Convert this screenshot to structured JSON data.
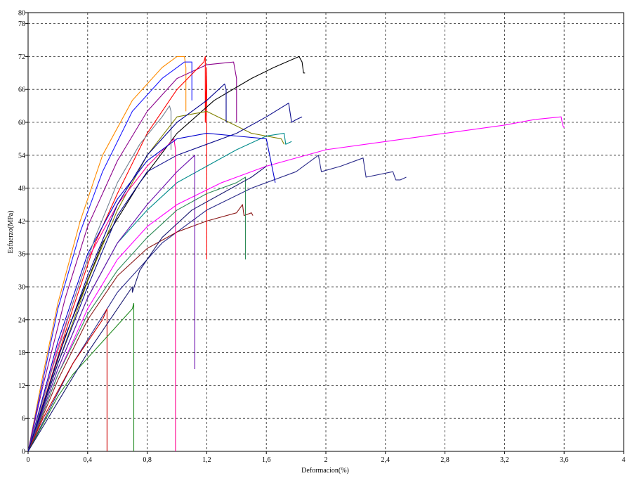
{
  "chart_data": {
    "type": "line",
    "title": "",
    "xlabel": "Deformacion(%)",
    "ylabel": "Esfuerzo(MPa)",
    "xlim": [
      0,
      4
    ],
    "ylim": [
      0,
      80
    ],
    "grid": true,
    "x_ticks": [
      0,
      0.4,
      0.8,
      1.2,
      1.6,
      2,
      2.4,
      2.8,
      3.2,
      3.6,
      4
    ],
    "x_tick_labels": [
      "0",
      "0,4",
      "0,8",
      "1,2",
      "1,6",
      "2",
      "2,4",
      "2,8",
      "3,2",
      "3,6",
      "4"
    ],
    "y_ticks": [
      0,
      6,
      12,
      18,
      24,
      30,
      36,
      42,
      48,
      54,
      60,
      66,
      72,
      78,
      80
    ],
    "y_tick_labels": [
      "0",
      "6",
      "12",
      "18",
      "24",
      "30",
      "36",
      "42",
      "48",
      "54",
      "60",
      "66",
      "72",
      "78",
      "80"
    ],
    "series": [
      {
        "color": "#ff8c00",
        "x": [
          0,
          0.1,
          0.2,
          0.35,
          0.5,
          0.7,
          0.9,
          1.0,
          1.05,
          1.06,
          1.06
        ],
        "y": [
          0,
          14,
          27,
          42,
          54,
          64,
          70,
          72,
          72,
          70,
          62
        ]
      },
      {
        "color": "#1a1aff",
        "x": [
          0,
          0.1,
          0.2,
          0.35,
          0.5,
          0.7,
          0.9,
          1.05,
          1.1,
          1.1
        ],
        "y": [
          0,
          13,
          26,
          40,
          51,
          62,
          68,
          71,
          71,
          64
        ]
      },
      {
        "color": "#8b008b",
        "x": [
          0,
          0.1,
          0.25,
          0.4,
          0.6,
          0.8,
          1.0,
          1.2,
          1.38,
          1.4,
          1.4
        ],
        "y": [
          0,
          12,
          28,
          41,
          53,
          62,
          68,
          70.5,
          71,
          68,
          60
        ]
      },
      {
        "color": "#ff0000",
        "x": [
          0,
          0.15,
          0.3,
          0.45,
          0.6,
          0.8,
          1.0,
          1.18,
          1.19,
          1.19,
          1.2,
          1.2
        ],
        "y": [
          0,
          13,
          26,
          38,
          47,
          58,
          66,
          71,
          72,
          60,
          70,
          35
        ]
      },
      {
        "color": "#000000",
        "x": [
          0,
          0.25,
          0.5,
          0.75,
          1.0,
          1.25,
          1.5,
          1.65,
          1.82,
          1.84,
          1.85,
          1.86
        ],
        "y": [
          0,
          21,
          38,
          49,
          58,
          64,
          68,
          70,
          72,
          71,
          69,
          69
        ]
      },
      {
        "color": "#808000",
        "x": [
          0,
          0.2,
          0.4,
          0.6,
          0.8,
          1.0,
          1.2,
          1.35,
          1.5,
          1.6,
          1.7,
          1.72
        ],
        "y": [
          0,
          16,
          31,
          44,
          54,
          61,
          62,
          60,
          58,
          57.5,
          57,
          56
        ]
      },
      {
        "color": "#0b0b8b",
        "x": [
          0,
          0.2,
          0.4,
          0.6,
          0.8,
          1.0,
          1.2,
          1.4,
          1.6,
          1.75,
          1.77,
          1.8,
          1.84
        ],
        "y": [
          0,
          16,
          30,
          43,
          51,
          54,
          56,
          58,
          61,
          63.5,
          60,
          60.5,
          61
        ]
      },
      {
        "color": "#008b8b",
        "x": [
          0,
          0.2,
          0.4,
          0.6,
          0.8,
          1.0,
          1.2,
          1.4,
          1.6,
          1.72,
          1.73,
          1.77
        ],
        "y": [
          0,
          15,
          28,
          38,
          44,
          49,
          52,
          55,
          57.5,
          58,
          56,
          56.5
        ]
      },
      {
        "color": "#ff00ff",
        "x": [
          0,
          0.2,
          0.4,
          0.6,
          0.8,
          1.0,
          1.3,
          1.6,
          2.0,
          2.4,
          2.8,
          3.2,
          3.4,
          3.58,
          3.59,
          3.6
        ],
        "y": [
          0,
          14,
          26,
          35,
          41,
          45,
          49,
          52,
          55,
          56.5,
          58,
          59.5,
          60.5,
          61,
          59.5,
          59
        ]
      },
      {
        "color": "#2a2a8a",
        "x": [
          0,
          0.3,
          0.6,
          0.9,
          1.2,
          1.5,
          1.8,
          1.95,
          1.97,
          2.1,
          2.25,
          2.27,
          2.45,
          2.47,
          2.5,
          2.54
        ],
        "y": [
          0,
          16,
          29,
          38,
          44,
          48,
          51,
          54,
          51,
          52,
          53.5,
          50,
          51,
          49.5,
          49.5,
          50
        ]
      },
      {
        "color": "#8b1a1a",
        "x": [
          0,
          0.2,
          0.4,
          0.6,
          0.8,
          1.0,
          1.2,
          1.4,
          1.44,
          1.45,
          1.5,
          1.51
        ],
        "y": [
          0,
          13,
          24,
          32,
          37,
          40,
          42,
          43.5,
          45,
          43,
          43.5,
          43
        ]
      },
      {
        "color": "#ff0090",
        "x": [
          0,
          0.2,
          0.4,
          0.6,
          0.8,
          0.98,
          0.99,
          0.99
        ],
        "y": [
          0,
          19,
          35,
          45,
          52,
          57,
          55,
          0
        ]
      },
      {
        "color": "#2e8b57",
        "x": [
          0,
          0.2,
          0.4,
          0.6,
          0.8,
          1.0,
          1.2,
          1.4,
          1.46,
          1.46
        ],
        "y": [
          0,
          14,
          25,
          33,
          39,
          44,
          47,
          49,
          50,
          35
        ]
      },
      {
        "color": "#6a0dad",
        "x": [
          0,
          0.2,
          0.4,
          0.6,
          0.8,
          1.0,
          1.12,
          1.12
        ],
        "y": [
          0,
          15,
          28,
          38,
          45,
          51,
          54,
          15
        ]
      },
      {
        "color": "#cc0000",
        "x": [
          0,
          0.1,
          0.2,
          0.3,
          0.4,
          0.5,
          0.53,
          0.53
        ],
        "y": [
          0,
          6,
          11,
          16,
          20,
          24,
          26,
          0
        ]
      },
      {
        "color": "#228b22",
        "x": [
          0,
          0.1,
          0.2,
          0.3,
          0.4,
          0.5,
          0.6,
          0.7,
          0.71,
          0.71
        ],
        "y": [
          0,
          5,
          10,
          14,
          17,
          20,
          23,
          26,
          27,
          0
        ]
      },
      {
        "color": "#191970",
        "x": [
          0,
          0.2,
          0.4,
          0.6,
          0.7,
          0.7,
          0.75,
          0.9,
          1.1,
          1.3,
          1.5,
          1.6
        ],
        "y": [
          0,
          9,
          18,
          26,
          30,
          29,
          33,
          39,
          44,
          47,
          50,
          52
        ]
      },
      {
        "color": "#0000cd",
        "x": [
          0,
          0.2,
          0.4,
          0.6,
          0.8,
          1.0,
          1.2,
          1.4,
          1.6,
          1.66
        ],
        "y": [
          0,
          20,
          36,
          46,
          53,
          57,
          58,
          57.5,
          57,
          49
        ]
      },
      {
        "color": "#708090",
        "x": [
          0,
          0.15,
          0.3,
          0.45,
          0.6,
          0.75,
          0.9,
          0.95,
          0.96,
          0.96
        ],
        "y": [
          0,
          14,
          27,
          39,
          49,
          56,
          61,
          63,
          62,
          55
        ]
      },
      {
        "color": "#00008b",
        "x": [
          0,
          0.2,
          0.4,
          0.6,
          0.8,
          1.0,
          1.2,
          1.32,
          1.33,
          1.33
        ],
        "y": [
          0,
          17,
          32,
          45,
          54,
          60,
          64,
          67,
          66,
          60
        ]
      }
    ]
  }
}
